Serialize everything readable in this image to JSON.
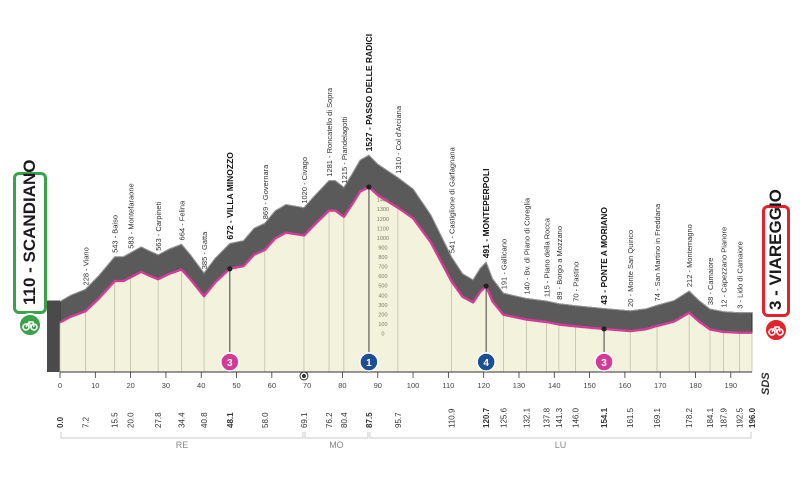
{
  "start": {
    "label": "110 - SCANDIANO",
    "color": "#3aa34a"
  },
  "finish": {
    "label": "3 - VIAREGGIO",
    "color": "#e3222b"
  },
  "colors": {
    "profile_line": "#d43b97",
    "fill": "#f3f2dc",
    "grey": "#6f6f6f",
    "dark": "#3c3c3c"
  },
  "sds_label": "SDS",
  "regions": [
    {
      "label": "RE",
      "from": 0,
      "to": 69.1
    },
    {
      "label": "MO",
      "from": 69.1,
      "to": 87.5
    },
    {
      "label": "LU",
      "from": 87.5,
      "to": 196.0
    }
  ],
  "chart_data": {
    "type": "area",
    "xlim": [
      0,
      196
    ],
    "ylim": [
      0,
      1600
    ],
    "y_ticks": [
      0,
      100,
      200,
      300,
      400,
      500,
      600,
      700,
      800,
      900,
      1000,
      1100,
      1200,
      1300,
      1400
    ],
    "x_ticks": [
      0,
      10,
      20,
      30,
      40,
      50,
      60,
      70,
      80,
      90,
      100,
      110,
      120,
      130,
      140,
      150,
      160,
      170,
      180,
      190
    ],
    "distance_labels": [
      "0.0",
      "7.2",
      "15.5",
      "20.0",
      "27.8",
      "34.4",
      "40.8",
      "48.1",
      "58.0",
      "69.1",
      "76.2",
      "80.4",
      "87.5",
      "95.7",
      "110.9",
      "120.7",
      "125.6",
      "132.1",
      "137.8",
      "141.3",
      "146.0",
      "154.1",
      "161.5",
      "169.1",
      "178.2",
      "184.1",
      "187.9",
      "192.5",
      "196.0"
    ],
    "waypoints": [
      {
        "km": 7.2,
        "alt": 228,
        "name": "Viano",
        "bold": false
      },
      {
        "km": 15.5,
        "alt": 543,
        "name": "Baiso",
        "bold": false
      },
      {
        "km": 20.0,
        "alt": 583,
        "name": "Montefaraone",
        "bold": false
      },
      {
        "km": 27.8,
        "alt": 563,
        "name": "Carpineti",
        "bold": false
      },
      {
        "km": 34.4,
        "alt": 664,
        "name": "Felina",
        "bold": false
      },
      {
        "km": 40.8,
        "alt": 385,
        "name": "Gatta",
        "bold": false
      },
      {
        "km": 48.1,
        "alt": 672,
        "name": "VILLA MINOZZO",
        "bold": true
      },
      {
        "km": 58.0,
        "alt": 869,
        "name": "Governara",
        "bold": false
      },
      {
        "km": 69.1,
        "alt": 1020,
        "name": "Civago",
        "bold": false
      },
      {
        "km": 76.2,
        "alt": 1281,
        "name": "Roncatello di Sopra",
        "bold": false
      },
      {
        "km": 80.4,
        "alt": 1215,
        "name": "Piandelagotti",
        "bold": false
      },
      {
        "km": 87.5,
        "alt": 1527,
        "name": "PASSO DELLE RADICI",
        "bold": true
      },
      {
        "km": 95.7,
        "alt": 1310,
        "name": "Col d'Arciana",
        "bold": false
      },
      {
        "km": 110.9,
        "alt": 541,
        "name": "Castiglione di Garfagnana",
        "bold": false
      },
      {
        "km": 120.7,
        "alt": 491,
        "name": "MONTEPERPOLI",
        "bold": true
      },
      {
        "km": 125.6,
        "alt": 191,
        "name": "Gallicano",
        "bold": false
      },
      {
        "km": 132.1,
        "alt": 140,
        "name": "Bv. di Piano di Coreglia",
        "bold": false
      },
      {
        "km": 137.8,
        "alt": 115,
        "name": "Piano della Rocca",
        "bold": false
      },
      {
        "km": 141.3,
        "alt": 89,
        "name": "Borgo a Mozzano",
        "bold": false
      },
      {
        "km": 146.0,
        "alt": 70,
        "name": "Pastino",
        "bold": false
      },
      {
        "km": 154.1,
        "alt": 43,
        "name": "PONTE A MORIANO",
        "bold": true
      },
      {
        "km": 161.5,
        "alt": 20,
        "name": "Monte San Quirico",
        "bold": false
      },
      {
        "km": 169.1,
        "alt": 74,
        "name": "San Martino in Freddana",
        "bold": false
      },
      {
        "km": 178.2,
        "alt": 212,
        "name": "Montemagno",
        "bold": false
      },
      {
        "km": 184.1,
        "alt": 38,
        "name": "Camaiore",
        "bold": false
      },
      {
        "km": 187.9,
        "alt": 12,
        "name": "Capezzano Pianore",
        "bold": false
      },
      {
        "km": 192.5,
        "alt": 3,
        "name": "Lido di Camaiore",
        "bold": false
      }
    ],
    "profile": [
      {
        "km": 0,
        "alt": 110
      },
      {
        "km": 3,
        "alt": 170
      },
      {
        "km": 7.2,
        "alt": 228
      },
      {
        "km": 11,
        "alt": 360
      },
      {
        "km": 15.5,
        "alt": 543
      },
      {
        "km": 18,
        "alt": 545
      },
      {
        "km": 20.0,
        "alt": 583
      },
      {
        "km": 23,
        "alt": 640
      },
      {
        "km": 25,
        "alt": 605
      },
      {
        "km": 27.8,
        "alt": 563
      },
      {
        "km": 31,
        "alt": 620
      },
      {
        "km": 34.4,
        "alt": 664
      },
      {
        "km": 37,
        "alt": 560
      },
      {
        "km": 40.8,
        "alt": 385
      },
      {
        "km": 44,
        "alt": 530
      },
      {
        "km": 48.1,
        "alt": 672
      },
      {
        "km": 52,
        "alt": 700
      },
      {
        "km": 55,
        "alt": 820
      },
      {
        "km": 58.0,
        "alt": 869
      },
      {
        "km": 61,
        "alt": 990
      },
      {
        "km": 64,
        "alt": 1050
      },
      {
        "km": 69.1,
        "alt": 1020
      },
      {
        "km": 72,
        "alt": 1130
      },
      {
        "km": 76.2,
        "alt": 1281
      },
      {
        "km": 78,
        "alt": 1280
      },
      {
        "km": 80.4,
        "alt": 1215
      },
      {
        "km": 83,
        "alt": 1360
      },
      {
        "km": 85,
        "alt": 1480
      },
      {
        "km": 87.5,
        "alt": 1527
      },
      {
        "km": 90,
        "alt": 1440
      },
      {
        "km": 95.7,
        "alt": 1310
      },
      {
        "km": 100,
        "alt": 1200
      },
      {
        "km": 105,
        "alt": 950
      },
      {
        "km": 110.9,
        "alt": 541
      },
      {
        "km": 114,
        "alt": 380
      },
      {
        "km": 117,
        "alt": 320
      },
      {
        "km": 119,
        "alt": 430
      },
      {
        "km": 120.7,
        "alt": 491
      },
      {
        "km": 122.5,
        "alt": 330
      },
      {
        "km": 125.6,
        "alt": 191
      },
      {
        "km": 132.1,
        "alt": 140
      },
      {
        "km": 137.8,
        "alt": 115
      },
      {
        "km": 141.3,
        "alt": 89
      },
      {
        "km": 146.0,
        "alt": 70
      },
      {
        "km": 154.1,
        "alt": 43
      },
      {
        "km": 161.5,
        "alt": 20
      },
      {
        "km": 166,
        "alt": 40
      },
      {
        "km": 169.1,
        "alt": 74
      },
      {
        "km": 174,
        "alt": 120
      },
      {
        "km": 178.2,
        "alt": 212
      },
      {
        "km": 181,
        "alt": 120
      },
      {
        "km": 184.1,
        "alt": 38
      },
      {
        "km": 187.9,
        "alt": 12
      },
      {
        "km": 192.5,
        "alt": 3
      },
      {
        "km": 196.0,
        "alt": 3
      }
    ],
    "gpm": [
      {
        "km": 48.1,
        "category": "3",
        "color": "#d43b97"
      },
      {
        "km": 87.5,
        "category": "1",
        "color": "#1c4f94"
      },
      {
        "km": 120.7,
        "category": "4",
        "color": "#1c4f94"
      },
      {
        "km": 154.1,
        "category": "3",
        "color": "#d43b97"
      }
    ],
    "intermediate_markers": [
      69.1
    ]
  }
}
